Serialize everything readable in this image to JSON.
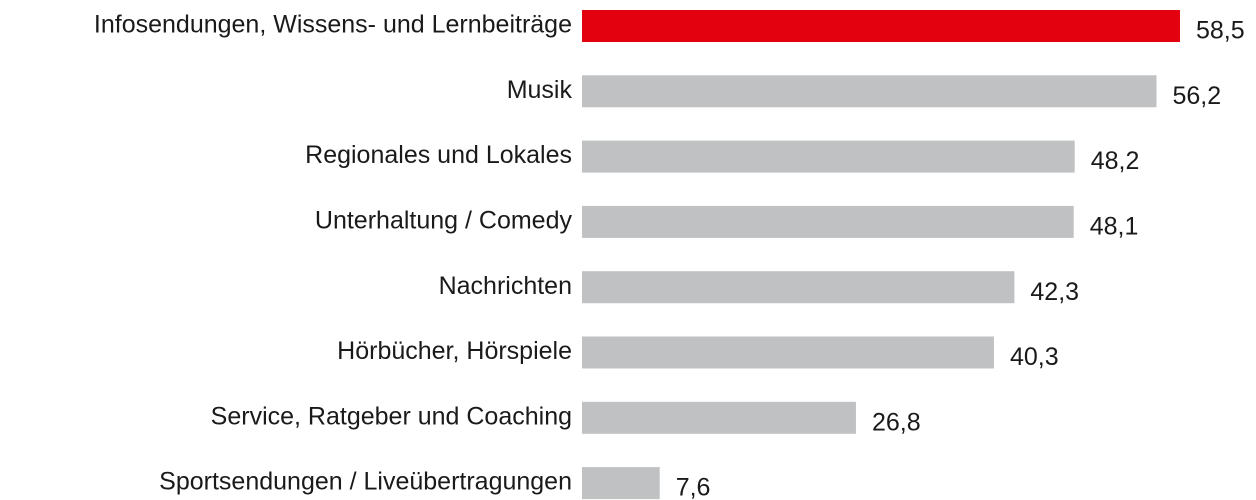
{
  "chart_data": {
    "type": "bar",
    "orientation": "horizontal",
    "categories": [
      "Infosendungen, Wissens- und Lernbeiträge",
      "Musik",
      "Regionales und Lokales",
      "Unterhaltung / Comedy",
      "Nachrichten",
      "Hörbücher, Hörspiele",
      "Service, Ratgeber und Coaching",
      "Sportsendungen / Liveübertragungen"
    ],
    "values": [
      58.5,
      56.2,
      48.2,
      48.1,
      42.3,
      40.3,
      26.8,
      7.6
    ],
    "value_labels": [
      "58,5",
      "56,2",
      "48,2",
      "48,1",
      "42,3",
      "40,3",
      "26,8",
      "7,6"
    ],
    "colors": [
      "#e3000f",
      "#bfc1c3",
      "#bfc1c3",
      "#bfc1c3",
      "#bfc1c3",
      "#bfc1c3",
      "#bfc1c3",
      "#bfc1c3"
    ]
  }
}
